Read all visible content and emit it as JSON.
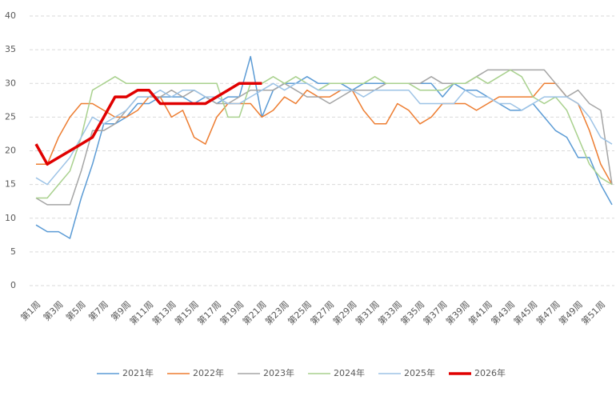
{
  "chart_data": {
    "type": "line",
    "categories": [
      "第1周",
      null,
      "第3周",
      null,
      "第5周",
      null,
      "第7周",
      null,
      "第9周",
      null,
      "第11周",
      null,
      "第13周",
      null,
      "第15周",
      null,
      "第17周",
      null,
      "第19周",
      null,
      "第21周",
      null,
      "第23周",
      null,
      "第25周",
      null,
      "第27周",
      null,
      "第29周",
      null,
      "第31周",
      null,
      "第33周",
      null,
      "第35周",
      null,
      "第37周",
      null,
      "第39周",
      null,
      "第41周",
      null,
      "第43周",
      null,
      "第45周",
      null,
      "第47周",
      null,
      "第49周",
      null,
      "第51周",
      null
    ],
    "ylim": [
      0,
      40
    ],
    "yticks": [
      0,
      5,
      10,
      15,
      20,
      25,
      30,
      35,
      40
    ],
    "grid": true,
    "legend": "bottom",
    "series": [
      {
        "name": "2021年",
        "color": "#5b9bd5",
        "width": 1.5,
        "values": [
          9,
          8,
          8,
          7,
          13,
          18,
          24,
          24,
          25,
          27,
          27,
          28,
          28,
          28,
          27,
          28,
          27,
          28,
          28,
          34,
          25,
          29,
          30,
          30,
          31,
          30,
          30,
          30,
          29,
          30,
          30,
          30,
          30,
          30,
          30,
          30,
          28,
          30,
          29,
          29,
          28,
          27,
          26,
          26,
          27,
          25,
          23,
          22,
          19,
          19,
          15,
          12
        ]
      },
      {
        "name": "2022年",
        "color": "#ed7d31",
        "width": 1.5,
        "values": [
          18,
          18,
          22,
          25,
          27,
          27,
          26,
          25,
          25,
          26,
          28,
          28,
          25,
          26,
          22,
          21,
          25,
          27,
          27,
          27,
          25,
          26,
          28,
          27,
          29,
          28,
          28,
          29,
          29,
          26,
          24,
          24,
          27,
          26,
          24,
          25,
          27,
          27,
          27,
          26,
          27,
          28,
          28,
          28,
          28,
          30,
          30,
          28,
          27,
          23,
          18,
          15
        ]
      },
      {
        "name": "2023年",
        "color": "#a5a5a5",
        "width": 1.5,
        "values": [
          13,
          12,
          12,
          12,
          17,
          23,
          23,
          24,
          26,
          28,
          28,
          28,
          29,
          28,
          29,
          28,
          27,
          27,
          28,
          29,
          29,
          29,
          30,
          29,
          28,
          28,
          27,
          28,
          29,
          29,
          29,
          30,
          30,
          30,
          30,
          31,
          30,
          30,
          30,
          31,
          32,
          32,
          32,
          32,
          32,
          32,
          30,
          28,
          29,
          27,
          26,
          15
        ]
      },
      {
        "name": "2024年",
        "color": "#a9d18e",
        "width": 1.5,
        "values": [
          13,
          13,
          15,
          17,
          22,
          29,
          30,
          31,
          30,
          30,
          30,
          30,
          30,
          30,
          30,
          30,
          30,
          25,
          25,
          30,
          30,
          31,
          30,
          31,
          30,
          29,
          30,
          30,
          30,
          30,
          31,
          30,
          30,
          30,
          29,
          29,
          29,
          30,
          30,
          31,
          30,
          31,
          32,
          31,
          28,
          27,
          28,
          26,
          22,
          18,
          16,
          15
        ]
      },
      {
        "name": "2025年",
        "color": "#9dc3e6",
        "width": 1.5,
        "values": [
          16,
          15,
          17,
          19,
          22,
          25,
          24,
          25,
          26,
          28,
          28,
          29,
          28,
          29,
          29,
          28,
          28,
          27,
          27,
          28,
          29,
          30,
          29,
          30,
          30,
          29,
          29,
          29,
          29,
          28,
          29,
          29,
          29,
          29,
          27,
          27,
          27,
          27,
          29,
          28,
          28,
          27,
          27,
          26,
          27,
          28,
          28,
          28,
          27,
          25,
          22,
          21
        ]
      },
      {
        "name": "2026年",
        "color": "#e00000",
        "width": 3.5,
        "values": [
          21,
          18,
          19,
          20,
          21,
          22,
          25,
          28,
          28,
          29,
          29,
          27,
          27,
          27,
          27,
          27,
          28,
          29,
          30,
          30,
          30,
          null,
          null,
          null,
          null,
          null,
          null,
          null,
          null,
          null,
          null,
          null,
          null,
          null,
          null,
          null,
          null,
          null,
          null,
          null,
          null,
          null,
          null,
          null,
          null,
          null,
          null,
          null,
          null,
          null,
          null,
          null
        ]
      }
    ]
  }
}
